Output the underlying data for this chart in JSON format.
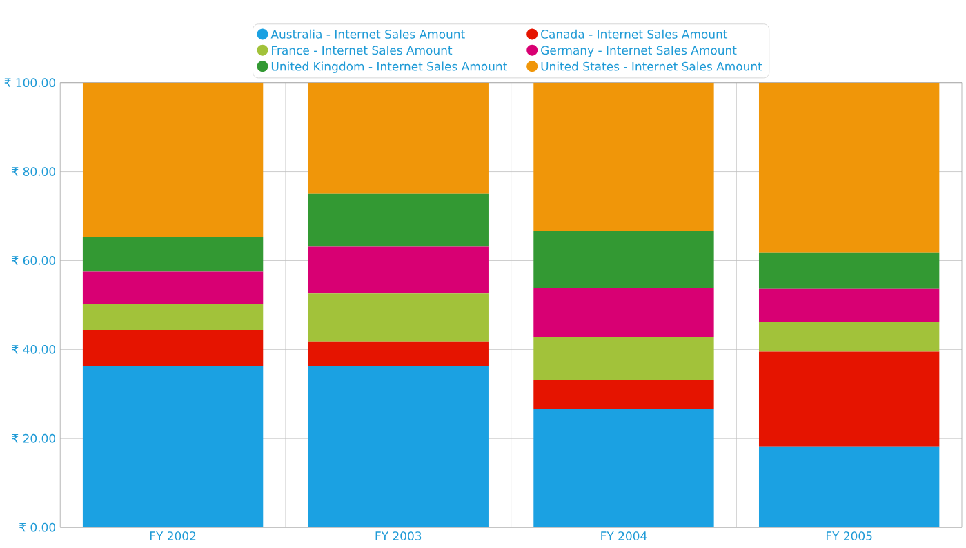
{
  "chart_data": {
    "type": "bar",
    "stacked": true,
    "categories": [
      "FY 2002",
      "FY 2003",
      "FY 2004",
      "FY 2005"
    ],
    "series": [
      {
        "name": "Australia - Internet Sales Amount",
        "color": "#1ba1e2",
        "values": [
          36.3,
          36.3,
          26.6,
          18.2
        ]
      },
      {
        "name": "Canada - Internet Sales Amount",
        "color": "#e51400",
        "values": [
          8.1,
          5.5,
          6.6,
          21.3
        ]
      },
      {
        "name": "France - Internet Sales Amount",
        "color": "#a2c23a",
        "values": [
          5.9,
          10.8,
          9.6,
          6.7
        ]
      },
      {
        "name": "Germany - Internet Sales Amount",
        "color": "#d80073",
        "values": [
          7.2,
          10.5,
          10.9,
          7.4
        ]
      },
      {
        "name": "United Kingdom - Internet Sales Amount",
        "color": "#339933",
        "values": [
          7.7,
          11.9,
          13.0,
          8.2
        ]
      },
      {
        "name": "United States - Internet Sales Amount",
        "color": "#f09609",
        "values": [
          34.8,
          25.0,
          33.3,
          38.2
        ]
      }
    ],
    "ylim": [
      0,
      100
    ],
    "yticks": [
      {
        "value": 0,
        "label": "₹ 0.00"
      },
      {
        "value": 20,
        "label": "₹ 20.00"
      },
      {
        "value": 40,
        "label": "₹ 40.00"
      },
      {
        "value": 60,
        "label": "₹ 60.00"
      },
      {
        "value": 80,
        "label": "₹ 80.00"
      },
      {
        "value": 100,
        "label": "₹ 100.00"
      }
    ],
    "grid": true,
    "legend": "top"
  }
}
